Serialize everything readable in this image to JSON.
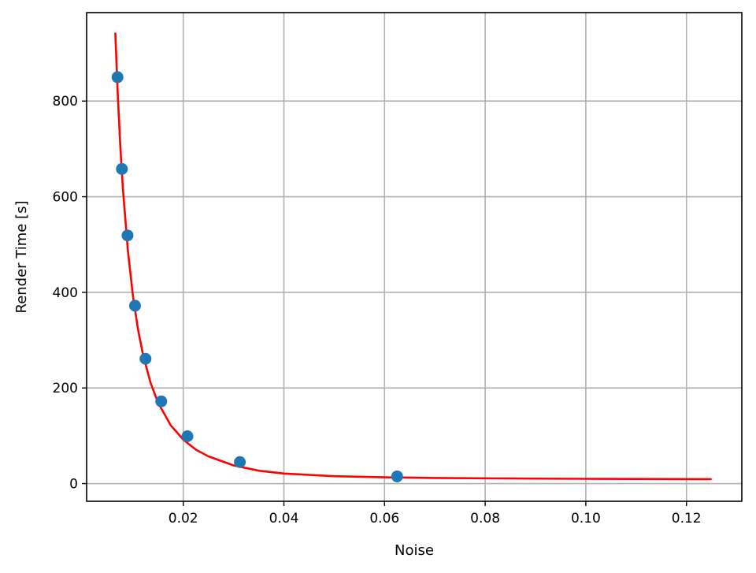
{
  "chart_data": {
    "type": "scatter",
    "xlabel": "Noise",
    "ylabel": "Render Time [s]",
    "xlim": [
      0.0008,
      0.131
    ],
    "ylim": [
      -37,
      985
    ],
    "grid": true,
    "x_ticks": [
      0.02,
      0.04,
      0.06,
      0.08,
      0.1,
      0.12
    ],
    "x_tick_labels": [
      "0.02",
      "0.04",
      "0.06",
      "0.08",
      "0.10",
      "0.12"
    ],
    "y_ticks": [
      0,
      200,
      400,
      600,
      800
    ],
    "y_tick_labels": [
      "0",
      "200",
      "400",
      "600",
      "800"
    ],
    "series": [
      {
        "type": "scatter",
        "color": "#1f77b4",
        "x": [
          0.00694,
          0.00781,
          0.00893,
          0.01042,
          0.0125,
          0.01563,
          0.02083,
          0.03125,
          0.0625
        ],
        "y": [
          850,
          658,
          519,
          372,
          261,
          172,
          99,
          45,
          15
        ]
      },
      {
        "type": "line",
        "color": "#ff0000",
        "x": [
          0.0065,
          0.007,
          0.0075,
          0.008,
          0.009,
          0.01,
          0.011,
          0.012,
          0.0135,
          0.015,
          0.0175,
          0.02,
          0.0225,
          0.025,
          0.03,
          0.035,
          0.04,
          0.05,
          0.06,
          0.07,
          0.08,
          0.09,
          0.1,
          0.11,
          0.125
        ],
        "y": [
          943,
          811,
          705,
          618,
          487,
          393,
          323,
          270,
          211,
          169,
          122,
          92,
          71,
          57,
          38,
          27,
          21,
          15.5,
          13.1,
          11.8,
          11.0,
          10.4,
          10.0,
          9.6,
          9.2
        ]
      }
    ]
  }
}
